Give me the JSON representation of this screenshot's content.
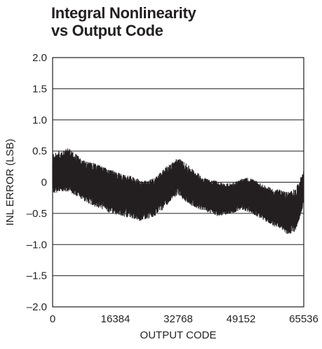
{
  "title_lines": [
    "Integral Nonlinearity",
    "vs Output Code"
  ],
  "chart_data": {
    "type": "line",
    "title": "Integral Nonlinearity vs Output Code",
    "xlabel": "OUTPUT CODE",
    "ylabel": "INL ERROR (LSB)",
    "xlim": [
      0,
      65536
    ],
    "ylim": [
      -2.0,
      2.0
    ],
    "xticks": [
      0,
      16384,
      32768,
      49152,
      65536
    ],
    "xtick_labels": [
      "0",
      "16384",
      "32768",
      "49152",
      "65536"
    ],
    "yticks": [
      2.0,
      1.5,
      1.0,
      0.5,
      0,
      -0.5,
      -1.0,
      -1.5,
      -2.0
    ],
    "ytick_labels": [
      "2.0",
      "1.5",
      "1.0",
      "0.5",
      "0",
      "–0.5",
      "–1.0",
      "–1.5",
      "–2.0"
    ],
    "grid": "horizontal",
    "line_color": "#231f20",
    "series": [
      {
        "x": [
          0,
          2048,
          4096,
          6144,
          8192,
          10240,
          12288,
          14336,
          16384,
          18432,
          20480,
          22528,
          24576,
          26624,
          28672,
          30720,
          32768,
          34816,
          36864,
          38912,
          40960,
          43008,
          45056,
          47104,
          49152,
          51200,
          53248,
          55296,
          57344,
          59392,
          61440,
          63488,
          65535
        ],
        "upper": [
          0.45,
          0.52,
          0.55,
          0.45,
          0.35,
          0.32,
          0.28,
          0.22,
          0.18,
          0.12,
          0.1,
          0.05,
          0.02,
          0.08,
          0.2,
          0.3,
          0.4,
          0.3,
          0.2,
          0.1,
          0.05,
          0.02,
          -0.02,
          0.0,
          0.05,
          0.08,
          0.02,
          -0.05,
          -0.1,
          -0.12,
          -0.15,
          -0.1,
          0.2
        ],
        "lower": [
          -0.2,
          -0.15,
          -0.15,
          -0.22,
          -0.3,
          -0.38,
          -0.42,
          -0.48,
          -0.52,
          -0.55,
          -0.58,
          -0.62,
          -0.6,
          -0.55,
          -0.45,
          -0.3,
          -0.2,
          -0.32,
          -0.4,
          -0.45,
          -0.5,
          -0.55,
          -0.52,
          -0.5,
          -0.45,
          -0.48,
          -0.55,
          -0.62,
          -0.7,
          -0.75,
          -0.85,
          -0.78,
          -0.35
        ]
      }
    ]
  }
}
